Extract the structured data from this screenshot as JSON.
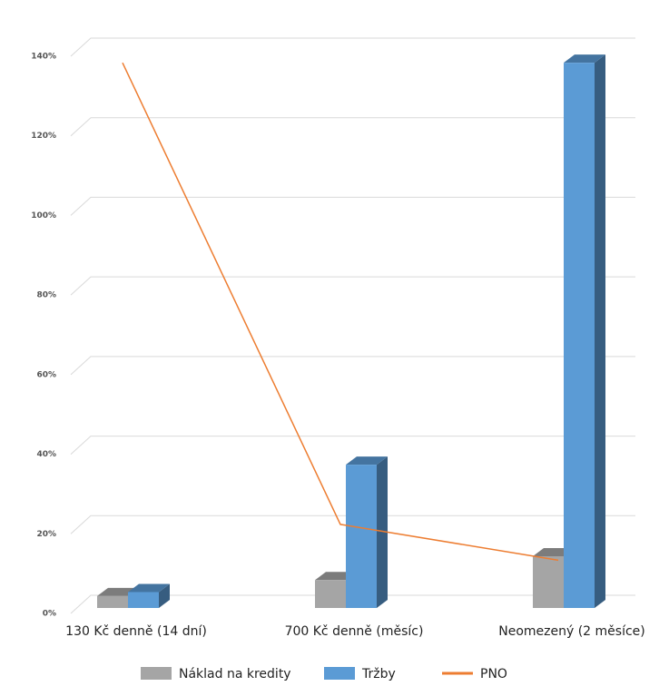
{
  "chart_data": {
    "type": "bar",
    "categories": [
      "130 Kč denně (14 dní)",
      "700 Kč denně (měsíc)",
      "Neomezený (2 měsíce)"
    ],
    "series": [
      {
        "name": "Náklad na kredity",
        "color": "#a5a5a5",
        "values": [
          3,
          7,
          13
        ]
      },
      {
        "name": "Tržby",
        "color": "#5b9bd5",
        "values": [
          4,
          36,
          137
        ]
      },
      {
        "name": "PNO",
        "color": "#ed7d31",
        "type": "line",
        "values": [
          137,
          21,
          12
        ]
      }
    ],
    "ylim": [
      0,
      140
    ],
    "yticks": [
      {
        "value": 0,
        "label": "0%"
      },
      {
        "value": 20,
        "label": "20%"
      },
      {
        "value": 40,
        "label": "40%"
      },
      {
        "value": 60,
        "label": "60%"
      },
      {
        "value": 80,
        "label": "80%"
      },
      {
        "value": 100,
        "label": "100%"
      },
      {
        "value": 120,
        "label": "120%"
      },
      {
        "value": 140,
        "label": "140%"
      }
    ],
    "grid": true,
    "legend": "bottom"
  }
}
